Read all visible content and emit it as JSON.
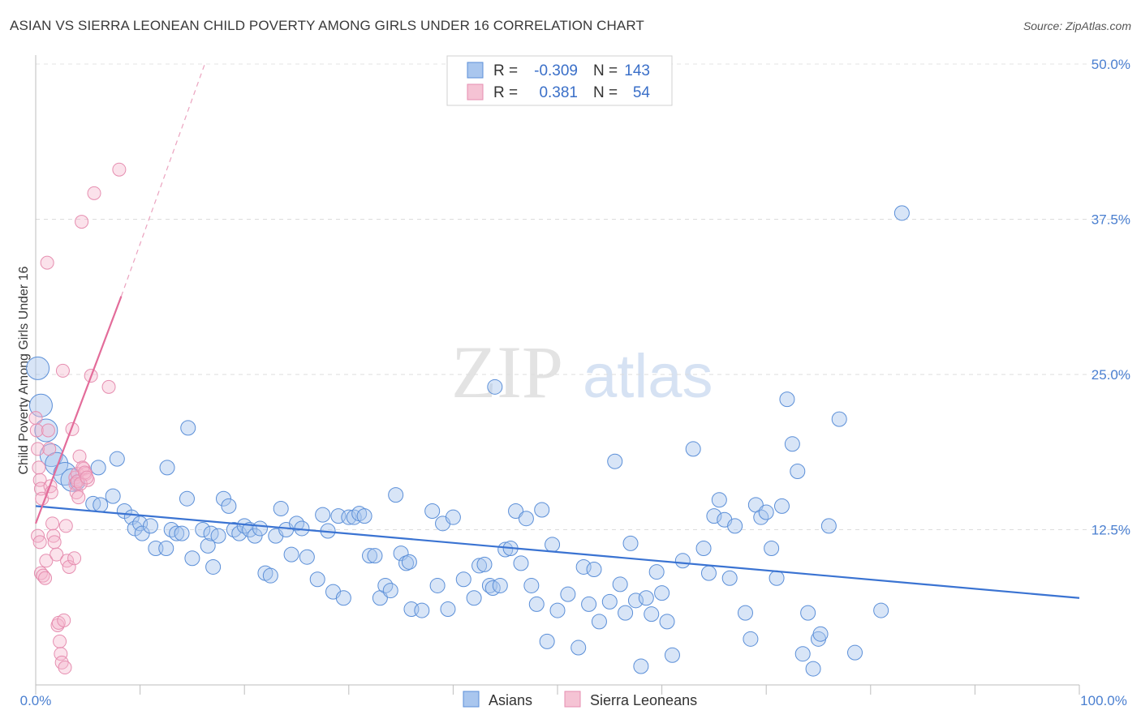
{
  "title": "ASIAN VS SIERRA LEONEAN CHILD POVERTY AMONG GIRLS UNDER 16 CORRELATION CHART",
  "source": "Source: ZipAtlas.com",
  "watermark": {
    "zip": "ZIP",
    "atlas": "atlas"
  },
  "colors": {
    "blue": "#3a73d2",
    "blue_fill": "#a9c6ee",
    "pink": "#e36c9a",
    "pink_fill": "#f5b6cc",
    "tick": "#4a7fd0",
    "grid": "#d9d9d9"
  },
  "stats": {
    "row1": {
      "r_label": "R =",
      "r_value": "-0.309",
      "n_label": "N =",
      "n_value": "143"
    },
    "row2": {
      "r_label": "R =",
      "r_value": "0.381",
      "n_label": "N =",
      "n_value": "54"
    }
  },
  "legend": {
    "asians": "Asians",
    "sierra": "Sierra Leoneans"
  },
  "chart_data": {
    "type": "scatter",
    "title": "ASIAN VS SIERRA LEONEAN CHILD POVERTY AMONG GIRLS UNDER 16 CORRELATION CHART",
    "xlabel": "",
    "ylabel": "Child Poverty Among Girls Under 16",
    "xlim": [
      0,
      100
    ],
    "ylim": [
      0,
      50
    ],
    "x_tick_labels": [
      "0.0%",
      "100.0%"
    ],
    "y_ticks": [
      12.5,
      25.0,
      37.5,
      50.0
    ],
    "y_tick_labels": [
      "12.5%",
      "25.0%",
      "37.5%",
      "50.0%"
    ],
    "grid": true,
    "legend_position": "bottom-center",
    "series": [
      {
        "name": "Asians",
        "color": "#3a73d2",
        "trend": {
          "x": [
            0,
            100
          ],
          "y": [
            14.4,
            7.0
          ]
        },
        "points": [
          [
            0.2,
            25.5
          ],
          [
            0.5,
            22.5
          ],
          [
            1.0,
            20.5
          ],
          [
            1.5,
            18.5
          ],
          [
            2.0,
            17.8
          ],
          [
            2.8,
            17.0
          ],
          [
            3.5,
            16.5
          ],
          [
            4.0,
            16.3
          ],
          [
            6.0,
            17.5
          ],
          [
            7.8,
            18.2
          ],
          [
            5.5,
            14.6
          ],
          [
            6.2,
            14.5
          ],
          [
            7.4,
            15.2
          ],
          [
            8.5,
            14.0
          ],
          [
            9.2,
            13.5
          ],
          [
            9.5,
            12.6
          ],
          [
            10.0,
            13.0
          ],
          [
            10.2,
            12.2
          ],
          [
            11.0,
            12.8
          ],
          [
            11.5,
            11.0
          ],
          [
            12.5,
            11.0
          ],
          [
            12.6,
            17.5
          ],
          [
            13.0,
            12.5
          ],
          [
            13.5,
            12.2
          ],
          [
            14.0,
            12.2
          ],
          [
            14.5,
            15.0
          ],
          [
            14.6,
            20.7
          ],
          [
            15.0,
            10.2
          ],
          [
            16.0,
            12.5
          ],
          [
            16.5,
            11.2
          ],
          [
            16.8,
            12.2
          ],
          [
            17.0,
            9.5
          ],
          [
            17.5,
            12.0
          ],
          [
            18.0,
            15.0
          ],
          [
            18.5,
            14.4
          ],
          [
            19.0,
            12.5
          ],
          [
            19.5,
            12.2
          ],
          [
            20.0,
            12.8
          ],
          [
            20.5,
            12.5
          ],
          [
            21.0,
            12.0
          ],
          [
            21.5,
            12.6
          ],
          [
            22.0,
            9.0
          ],
          [
            22.5,
            8.8
          ],
          [
            23.0,
            12.0
          ],
          [
            23.5,
            14.2
          ],
          [
            24.0,
            12.5
          ],
          [
            24.5,
            10.5
          ],
          [
            25.0,
            13.0
          ],
          [
            25.5,
            12.6
          ],
          [
            26.0,
            10.3
          ],
          [
            27.0,
            8.5
          ],
          [
            27.5,
            13.7
          ],
          [
            28.0,
            12.4
          ],
          [
            28.5,
            7.5
          ],
          [
            29.0,
            13.6
          ],
          [
            29.5,
            7.0
          ],
          [
            30.0,
            13.5
          ],
          [
            30.5,
            13.5
          ],
          [
            31.0,
            13.8
          ],
          [
            31.5,
            13.6
          ],
          [
            32.0,
            10.4
          ],
          [
            32.5,
            10.4
          ],
          [
            33.0,
            7.0
          ],
          [
            33.5,
            8.0
          ],
          [
            34.0,
            7.6
          ],
          [
            34.5,
            15.3
          ],
          [
            35.0,
            10.6
          ],
          [
            35.5,
            9.8
          ],
          [
            35.8,
            9.9
          ],
          [
            36.0,
            6.1
          ],
          [
            37.0,
            6.0
          ],
          [
            38.0,
            14.0
          ],
          [
            38.5,
            8.0
          ],
          [
            39.0,
            13.0
          ],
          [
            39.5,
            6.1
          ],
          [
            40.0,
            13.5
          ],
          [
            41.0,
            8.5
          ],
          [
            42.0,
            7.0
          ],
          [
            42.5,
            9.6
          ],
          [
            43.0,
            9.7
          ],
          [
            43.5,
            8.0
          ],
          [
            43.8,
            7.8
          ],
          [
            44.0,
            24.0
          ],
          [
            44.5,
            8.0
          ],
          [
            45.0,
            10.9
          ],
          [
            45.5,
            11.0
          ],
          [
            46.0,
            14.0
          ],
          [
            46.5,
            9.8
          ],
          [
            47.0,
            13.4
          ],
          [
            47.5,
            8.0
          ],
          [
            48.0,
            6.5
          ],
          [
            48.5,
            14.1
          ],
          [
            49.0,
            3.5
          ],
          [
            49.5,
            11.3
          ],
          [
            50.0,
            6.0
          ],
          [
            51.0,
            7.3
          ],
          [
            52.0,
            3.0
          ],
          [
            52.5,
            9.5
          ],
          [
            53.0,
            6.5
          ],
          [
            53.5,
            9.3
          ],
          [
            54.0,
            5.1
          ],
          [
            55.0,
            6.7
          ],
          [
            55.5,
            18.0
          ],
          [
            56.0,
            8.1
          ],
          [
            56.5,
            5.8
          ],
          [
            57.0,
            11.4
          ],
          [
            57.5,
            6.8
          ],
          [
            58.0,
            1.5
          ],
          [
            58.5,
            7.0
          ],
          [
            59.0,
            5.7
          ],
          [
            59.5,
            9.1
          ],
          [
            60.0,
            7.4
          ],
          [
            60.5,
            5.1
          ],
          [
            61.0,
            2.4
          ],
          [
            62.0,
            10.0
          ],
          [
            63.0,
            19.0
          ],
          [
            64.0,
            11.0
          ],
          [
            64.5,
            9.0
          ],
          [
            65.0,
            13.6
          ],
          [
            65.5,
            14.9
          ],
          [
            66.0,
            13.3
          ],
          [
            66.5,
            8.6
          ],
          [
            67.0,
            12.8
          ],
          [
            68.0,
            5.8
          ],
          [
            68.5,
            3.7
          ],
          [
            69.0,
            14.5
          ],
          [
            69.5,
            13.5
          ],
          [
            70.0,
            13.9
          ],
          [
            70.5,
            11.0
          ],
          [
            71.0,
            8.6
          ],
          [
            71.5,
            14.4
          ],
          [
            72.0,
            23.0
          ],
          [
            72.5,
            19.4
          ],
          [
            73.0,
            17.2
          ],
          [
            73.5,
            2.5
          ],
          [
            74.0,
            5.8
          ],
          [
            74.5,
            1.3
          ],
          [
            75.0,
            3.7
          ],
          [
            75.2,
            4.1
          ],
          [
            76.0,
            12.8
          ],
          [
            77.0,
            21.4
          ],
          [
            78.5,
            2.6
          ],
          [
            81.0,
            6.0
          ],
          [
            83.0,
            38.0
          ]
        ]
      },
      {
        "name": "Sierra Leoneans",
        "color": "#e36c9a",
        "trend": {
          "x": [
            0,
            8.2
          ],
          "y": [
            13.0,
            31.3
          ]
        },
        "trend_extension": {
          "x": [
            8.2,
            16.2
          ],
          "y": [
            31.3,
            50.0
          ]
        },
        "points": [
          [
            0.0,
            21.5
          ],
          [
            0.1,
            20.5
          ],
          [
            0.2,
            19.0
          ],
          [
            0.3,
            17.5
          ],
          [
            0.4,
            16.5
          ],
          [
            0.5,
            15.8
          ],
          [
            0.6,
            15.0
          ],
          [
            0.2,
            12.0
          ],
          [
            0.4,
            11.5
          ],
          [
            0.5,
            9.0
          ],
          [
            0.7,
            8.8
          ],
          [
            0.9,
            8.6
          ],
          [
            1.0,
            10.0
          ],
          [
            1.1,
            34.0
          ],
          [
            1.2,
            20.5
          ],
          [
            1.3,
            19.0
          ],
          [
            1.4,
            16.0
          ],
          [
            1.5,
            15.5
          ],
          [
            1.6,
            13.0
          ],
          [
            1.7,
            12.0
          ],
          [
            1.8,
            11.5
          ],
          [
            2.0,
            10.5
          ],
          [
            2.1,
            4.8
          ],
          [
            2.2,
            5.0
          ],
          [
            2.3,
            3.5
          ],
          [
            2.4,
            2.5
          ],
          [
            2.5,
            1.8
          ],
          [
            2.6,
            25.3
          ],
          [
            2.7,
            5.2
          ],
          [
            2.8,
            1.4
          ],
          [
            2.9,
            12.8
          ],
          [
            3.0,
            10.0
          ],
          [
            3.2,
            9.5
          ],
          [
            3.5,
            20.6
          ],
          [
            3.8,
            16.7
          ],
          [
            4.0,
            17.0
          ],
          [
            4.2,
            18.4
          ],
          [
            4.4,
            37.3
          ],
          [
            4.6,
            17.4
          ],
          [
            4.8,
            17.0
          ],
          [
            5.0,
            16.5
          ],
          [
            3.7,
            10.2
          ],
          [
            3.8,
            16.2
          ],
          [
            3.9,
            15.5
          ],
          [
            4.0,
            16.4
          ],
          [
            4.1,
            15.1
          ],
          [
            4.3,
            16.2
          ],
          [
            4.5,
            17.5
          ],
          [
            4.7,
            17.1
          ],
          [
            4.9,
            16.7
          ],
          [
            5.3,
            24.9
          ],
          [
            5.6,
            39.6
          ],
          [
            7.0,
            24.0
          ],
          [
            8.0,
            41.5
          ]
        ]
      }
    ]
  }
}
